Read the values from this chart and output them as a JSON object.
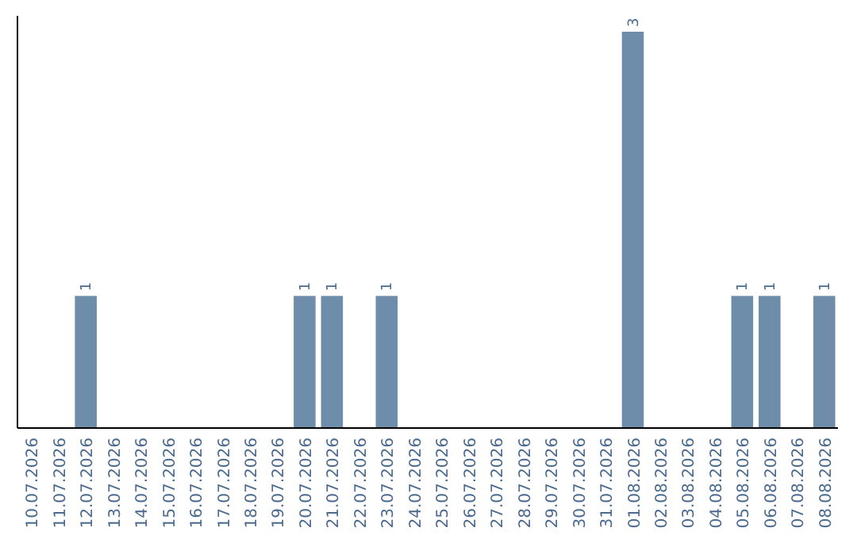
{
  "chart_data": {
    "type": "bar",
    "categories": [
      "10.07.2026",
      "11.07.2026",
      "12.07.2026",
      "13.07.2026",
      "14.07.2026",
      "15.07.2026",
      "16.07.2026",
      "17.07.2026",
      "18.07.2026",
      "19.07.2026",
      "20.07.2026",
      "21.07.2026",
      "22.07.2026",
      "23.07.2026",
      "24.07.2026",
      "25.07.2026",
      "26.07.2026",
      "27.07.2026",
      "28.07.2026",
      "29.07.2026",
      "30.07.2026",
      "31.07.2026",
      "01.08.2026",
      "02.08.2026",
      "03.08.2026",
      "04.08.2026",
      "05.08.2026",
      "06.08.2026",
      "07.08.2026",
      "08.08.2026"
    ],
    "values": [
      0,
      0,
      1,
      0,
      0,
      0,
      0,
      0,
      0,
      0,
      1,
      1,
      0,
      1,
      0,
      0,
      0,
      0,
      0,
      0,
      0,
      0,
      3,
      0,
      0,
      0,
      1,
      1,
      0,
      1
    ],
    "value_labels": [
      null,
      null,
      "1",
      null,
      null,
      null,
      null,
      null,
      null,
      null,
      "1",
      "1",
      null,
      "1",
      null,
      null,
      null,
      null,
      null,
      null,
      null,
      null,
      "3",
      null,
      null,
      null,
      "1",
      "1",
      null,
      "1"
    ],
    "color": "#6e8dab",
    "tick_labels": "x"
  }
}
